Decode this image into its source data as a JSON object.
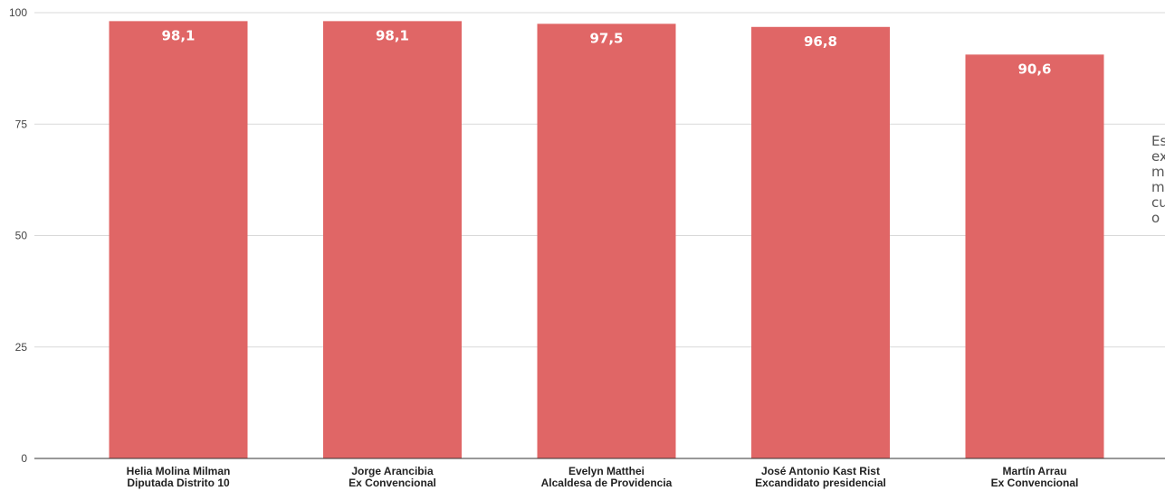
{
  "chart_data": {
    "type": "bar",
    "categories": [
      [
        "Helia Molina Milman",
        "Diputada Distrito 10"
      ],
      [
        "Jorge Arancibia",
        "Ex Convencional"
      ],
      [
        "Evelyn Matthei",
        "Alcaldesa de Providencia"
      ],
      [
        "José Antonio Kast Rist",
        "Excandidato presidencial"
      ],
      [
        "Martín Arrau",
        "Ex Convencional"
      ]
    ],
    "values": [
      98.1,
      98.1,
      97.5,
      96.8,
      90.6
    ],
    "value_labels": [
      "98,1",
      "98,1",
      "97,5",
      "96,8",
      "90,6"
    ],
    "title": "",
    "xlabel": "",
    "ylabel": "",
    "ylim": [
      0,
      100
    ],
    "yticks": [
      0,
      25,
      50,
      75,
      100
    ],
    "grid": true,
    "bar_color": "#e06666",
    "legend": "none"
  },
  "side_note": {
    "lines": [
      "Esc",
      "exc",
      "mo",
      "me",
      "cuá",
      "o re"
    ]
  }
}
